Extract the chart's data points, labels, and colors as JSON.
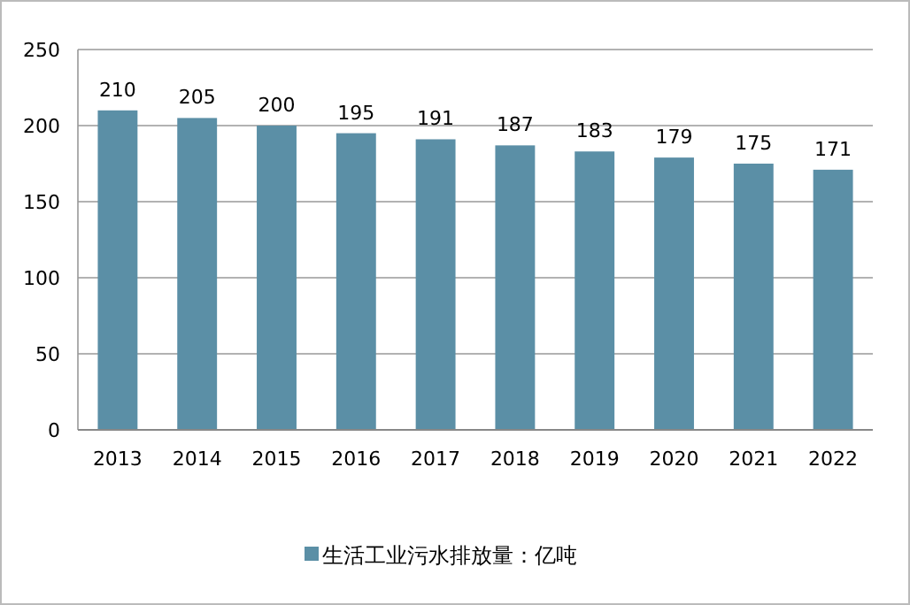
{
  "chart_data": {
    "type": "bar",
    "categories": [
      "2013",
      "2014",
      "2015",
      "2016",
      "2017",
      "2018",
      "2019",
      "2020",
      "2021",
      "2022"
    ],
    "series": [
      {
        "name": "生活工业污水排放量：亿吨",
        "color": "#5b8fa6",
        "values": [
          210,
          205,
          200,
          195,
          191,
          187,
          183,
          179,
          175,
          171
        ]
      }
    ],
    "ylim": [
      0,
      250
    ],
    "yticks": [
      0,
      50,
      100,
      150,
      200,
      250
    ],
    "grid": "y",
    "data_labels": true,
    "legend": "bottom"
  }
}
